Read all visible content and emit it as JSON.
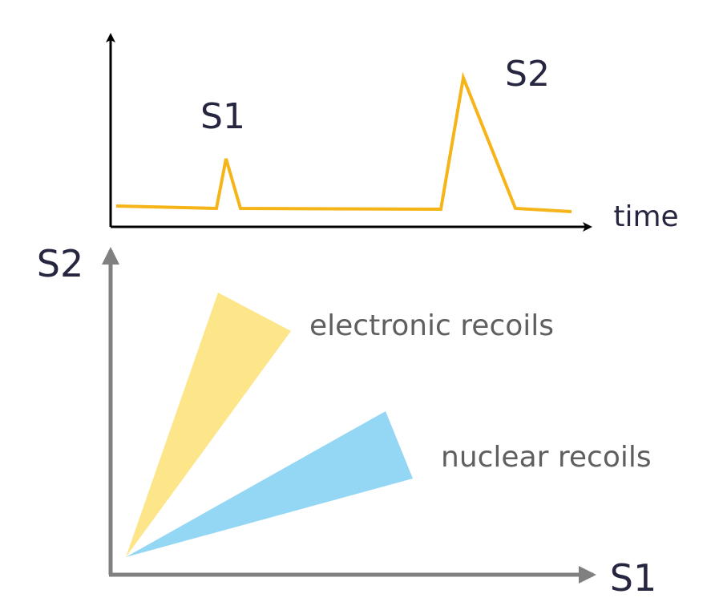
{
  "waveform": {
    "peak1_label": "S1",
    "peak2_label": "S2",
    "x_axis_label": "time",
    "trace_color": "#f5b418",
    "axis_color": "#000000"
  },
  "scatter": {
    "y_axis_label": "S2",
    "x_axis_label": "S1",
    "axis_color": "#808080",
    "bands": [
      {
        "label": "electronic recoils",
        "color": "#fde68a"
      },
      {
        "label": "nuclear recoils",
        "color": "#94d7f4"
      }
    ]
  }
}
